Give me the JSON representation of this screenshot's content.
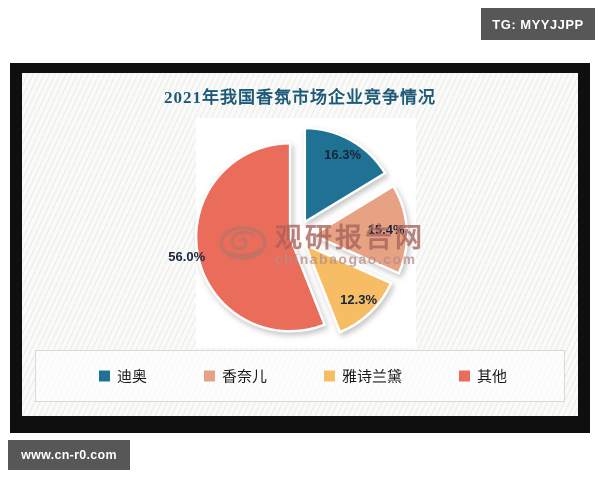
{
  "page": {
    "telegram_badge": "TG: MYYJJPP",
    "website_badge": "www.cn-r0.com"
  },
  "watermark": {
    "logo": "chinabaogao-swirl-logo",
    "name": "观研报告网",
    "domain": "chinabaogao.com"
  },
  "chart_data": {
    "type": "pie",
    "title": "2021年我国香氛市场企业竞争情况",
    "categories": [
      "迪奥",
      "香奈儿",
      "雅诗兰黛",
      "其他"
    ],
    "values": [
      16.3,
      15.4,
      12.3,
      56.0
    ],
    "unit": "%",
    "labels": [
      "16.3%",
      "15.4%",
      "12.3%",
      "56.0%"
    ],
    "colors": [
      "#1f7294",
      "#e7a284",
      "#f7bd64",
      "#ea6c5a"
    ],
    "label_color": "#16263a",
    "start_angle_deg": 0,
    "direction": "clockwise",
    "exploded": true,
    "legend_position": "bottom"
  }
}
